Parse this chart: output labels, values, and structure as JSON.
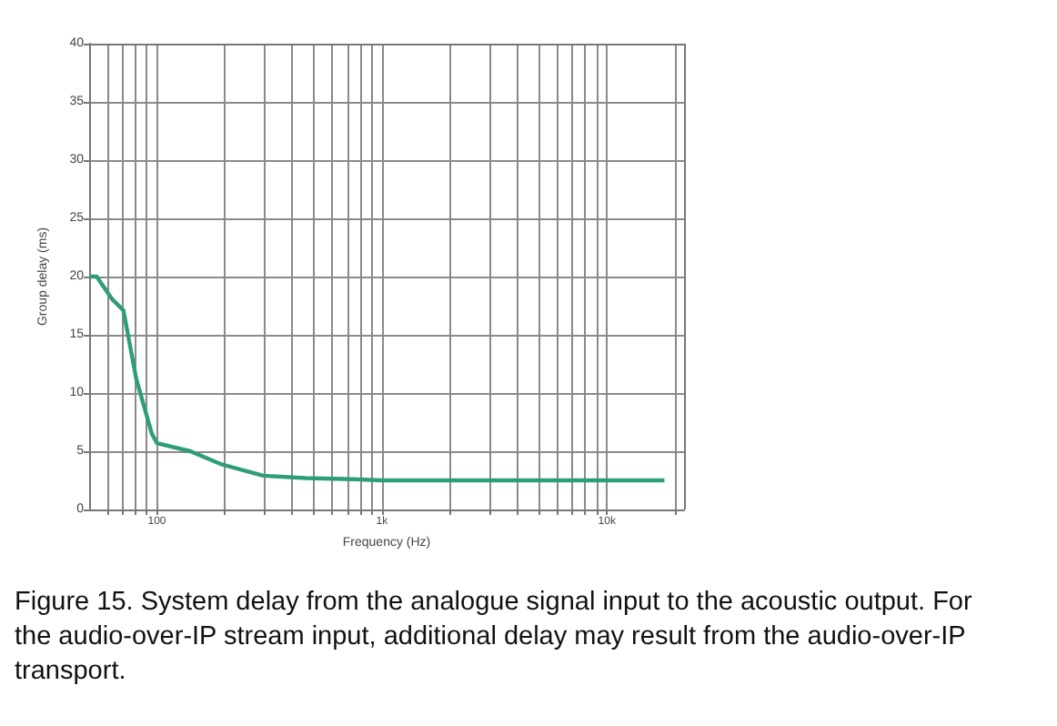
{
  "chart_data": {
    "type": "line",
    "xlabel": "Frequency (Hz)",
    "ylabel": "Group delay (ms)",
    "x": [
      50,
      54,
      63,
      71,
      81,
      95,
      100,
      141,
      192,
      297,
      457,
      750,
      1000,
      2000,
      5000,
      10000,
      18000
    ],
    "series": [
      {
        "color": "#2e9e78",
        "values": [
          20,
          20,
          18.1,
          17.1,
          11.2,
          6.5,
          5.7,
          5,
          3.9,
          2.9,
          2.7,
          2.6,
          2.5,
          2.5,
          2.5,
          2.5,
          2.5
        ]
      }
    ],
    "log": "x",
    "xlim": [
      50,
      22000
    ],
    "ylim": [
      0,
      40
    ],
    "xticks": [
      {
        "value": 60,
        "label": null
      },
      {
        "value": 70,
        "label": null
      },
      {
        "value": 80,
        "label": null
      },
      {
        "value": 90,
        "label": null
      },
      100,
      {
        "value": 200,
        "label": null
      },
      {
        "value": 300,
        "label": null
      },
      {
        "value": 400,
        "label": null
      },
      {
        "value": 500,
        "label": null
      },
      {
        "value": 600,
        "label": null
      },
      {
        "value": 700,
        "label": null
      },
      {
        "value": 800,
        "label": null
      },
      {
        "value": 900,
        "label": null
      },
      {
        "value": 1000,
        "label": "1k"
      },
      {
        "value": 2000,
        "label": null
      },
      {
        "value": 3000,
        "label": null
      },
      {
        "value": 4000,
        "label": null
      },
      {
        "value": 5000,
        "label": null
      },
      {
        "value": 6000,
        "label": null
      },
      {
        "value": 7000,
        "label": null
      },
      {
        "value": 8000,
        "label": null
      },
      {
        "value": 9000,
        "label": null
      },
      {
        "value": 10000,
        "label": "10k"
      },
      {
        "value": 20000,
        "label": null
      }
    ],
    "yticks": [
      0,
      5,
      10,
      15,
      20,
      25,
      30,
      35,
      40
    ],
    "grid": true,
    "line_style": "solid",
    "marker": "none",
    "annotations": [
      "Figure 15. System delay from the analogue signal input to the acoustic output. For the audio-over-IP stream input, additional delay may result from the audio-over-IP transport."
    ]
  }
}
